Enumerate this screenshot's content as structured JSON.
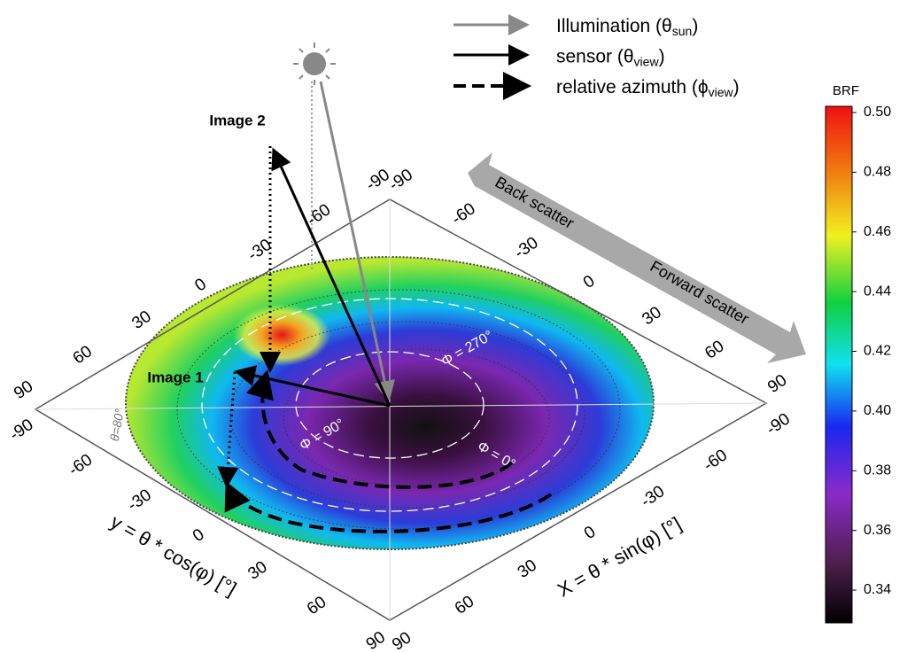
{
  "legend": [
    {
      "text": "Illumination (θ",
      "sub": "sun",
      "end": ")"
    },
    {
      "text": "sensor (θ",
      "sub": "view",
      "end": ")"
    },
    {
      "text": "relative azimuth (ϕ",
      "sub": "view",
      "end": ")"
    }
  ],
  "labels": {
    "image2": "Image 2",
    "image1": "Image 1",
    "phi270": "Φ = 270°",
    "phi90": "Φ = 90°",
    "phi0": "Φ = 0°",
    "theta80": "θ=80°",
    "back": "Back scatter",
    "forward": "Forward scatter"
  },
  "axes": {
    "y_title": "y = θ * cos(φ) [°]",
    "x_title": "X = θ * sin(φ) [°]",
    "lower_left": [
      "-90",
      "-60",
      "-30",
      "0",
      "30",
      "60",
      "90"
    ],
    "lower_right": [
      "90",
      "60",
      "30",
      "0",
      "-30",
      "-60",
      "-90"
    ],
    "upper_left": [
      "90",
      "60",
      "30",
      "0",
      "-30",
      "-60",
      "-90"
    ],
    "upper_right": [
      "-90",
      "-60",
      "-30",
      "0",
      "30",
      "60",
      "90"
    ]
  },
  "colorbar": {
    "title": "BRF",
    "ticks": [
      "0.50",
      "0.48",
      "0.46",
      "0.44",
      "0.42",
      "0.40",
      "0.38",
      "0.36",
      "0.34"
    ]
  }
}
